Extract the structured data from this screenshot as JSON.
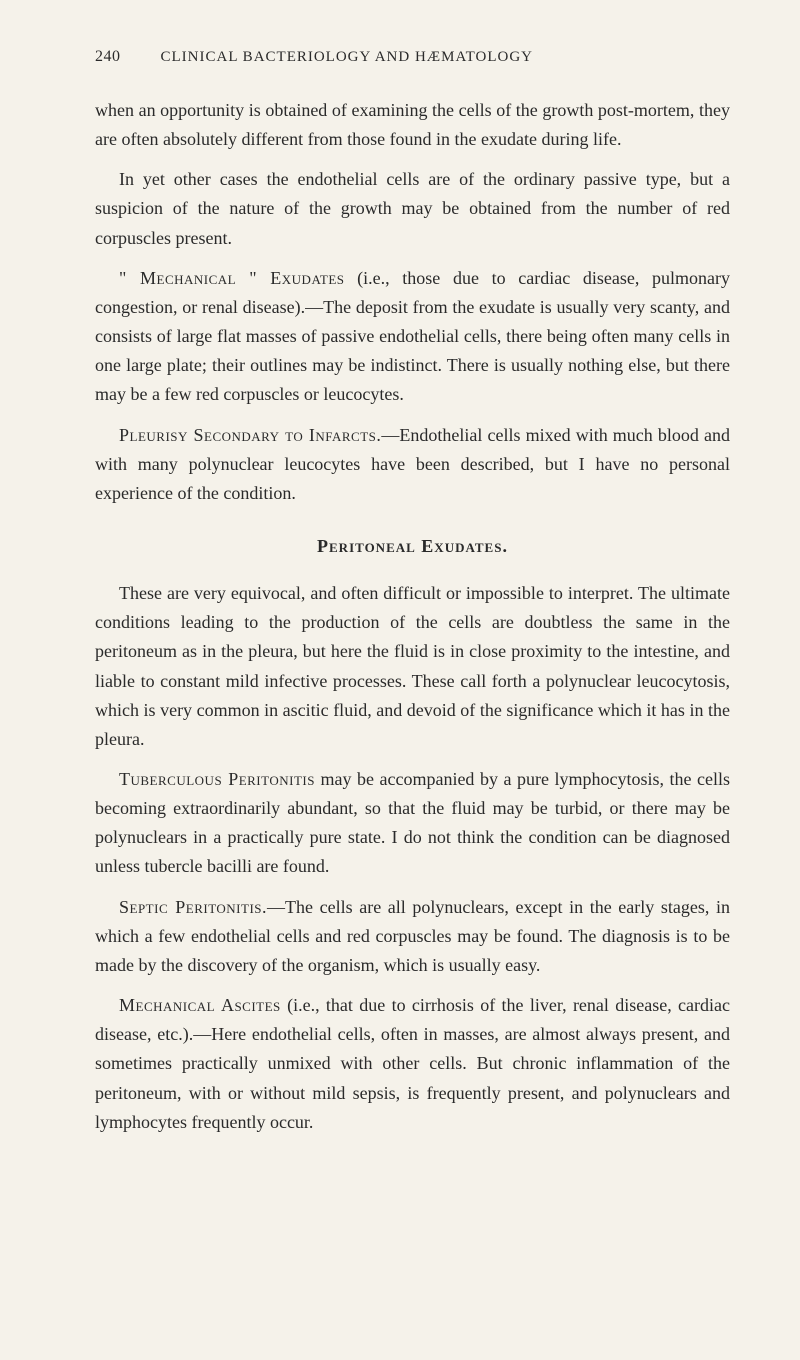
{
  "page": {
    "number": "240",
    "headerTitle": "CLINICAL BACTERIOLOGY AND HÆMATOLOGY"
  },
  "paragraphs": {
    "p1": "when an opportunity is obtained of examining the cells of the growth post-mortem, they are often absolutely different from those found in the exudate during life.",
    "p2": "In yet other cases the endothelial cells are of the ordinary passive type, but a suspicion of the nature of the growth may be obtained from the number of red corpuscles present.",
    "p3_lead": "\" Mechanical \" Exudates",
    "p3_body": " (i.e., those due to cardiac disease, pulmonary congestion, or renal disease).—The deposit from the exudate is usually very scanty, and consists of large flat masses of passive endothelial cells, there being often many cells in one large plate; their outlines may be indistinct. There is usually nothing else, but there may be a few red corpuscles or leucocytes.",
    "p4_lead": "Pleurisy Secondary to Infarcts.",
    "p4_body": "—Endothelial cells mixed with much blood and with many polynuclear leucocytes have been described, but I have no personal experience of the condition.",
    "sectionHeading": "Peritoneal Exudates.",
    "p5": "These are very equivocal, and often difficult or impossible to interpret. The ultimate conditions leading to the production of the cells are doubtless the same in the peritoneum as in the pleura, but here the fluid is in close proximity to the intestine, and liable to constant mild infective processes. These call forth a poly­nuclear leucocytosis, which is very common in ascitic fluid, and devoid of the significance which it has in the pleura.",
    "p6_lead": "Tuberculous Peritonitis",
    "p6_body": " may be accompanied by a pure lymphocytosis, the cells becoming extraordinarily abundant, so that the fluid may be turbid, or there may be polynuclears in a practically pure state. I do not think the condition can be diag­nosed unless tubercle bacilli are found.",
    "p7_lead": "Septic Peritonitis.",
    "p7_body": "—The cells are all polynuclears, except in the early stages, in which a few endothelial cells and red corpuscles may be found. The diagnosis is to be made by the discovery of the organism, which is usually easy.",
    "p8_lead": "Mechanical Ascites",
    "p8_body": " (i.e., that due to cirrhosis of the liver, renal disease, cardiac disease, etc.).—Here endothelial cells, often in masses, are almost always present, and sometimes practically unmixed with other cells. But chronic inflammation of the peritoneum, with or without mild sepsis, is frequently present, and polynuclears and lymphocytes frequently occur."
  },
  "colors": {
    "background": "#f5f2ea",
    "text": "#2a2a2a"
  },
  "typography": {
    "bodyFontSize": 18,
    "headerFontSize": 15,
    "lineHeight": 1.62
  }
}
